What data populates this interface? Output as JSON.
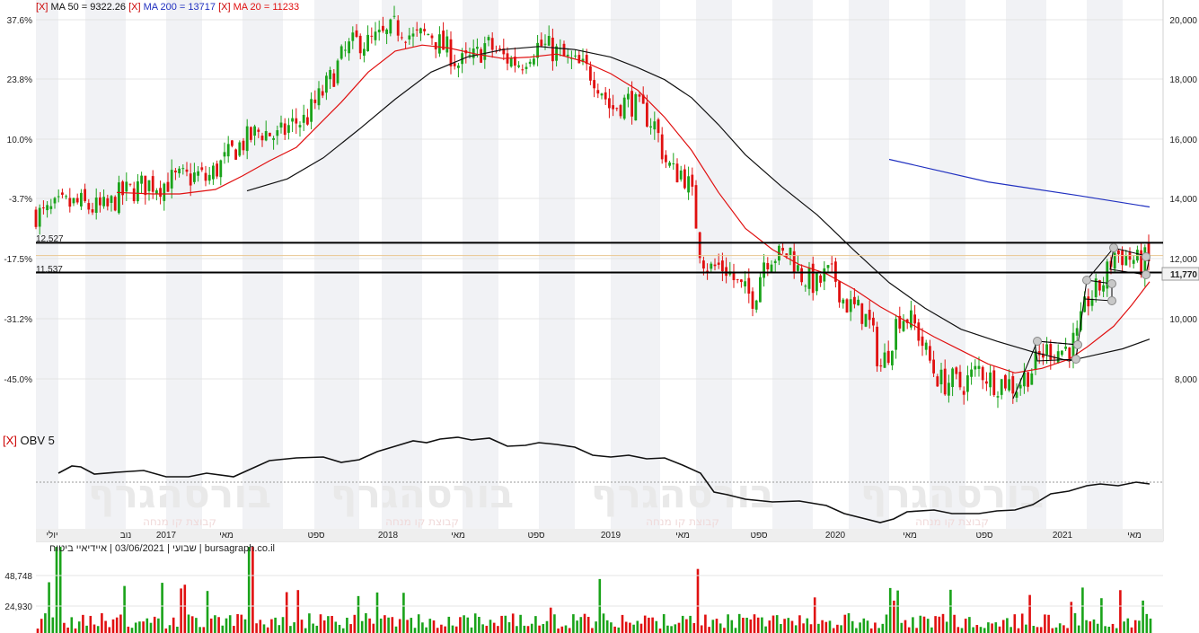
{
  "legend": {
    "close_mark": "[X]",
    "ma50": "MA 50 = 9322.26",
    "ma200": "MA 200 = 13717",
    "ma20": "MA 20 = 11233",
    "obv": "OBV 5"
  },
  "footer_info": "שבועי | 03/06/2021 | איידיאיי ביטוח | bursagraph.co.il",
  "watermark": {
    "brand": "בורסהגרף",
    "tagline": "קבוצת קו מנחה"
  },
  "colors": {
    "up": "#1aa31a",
    "down": "#e01010",
    "ma20": "#e01010",
    "ma50": "#111111",
    "ma200": "#2030c0",
    "obv": "#111111"
  },
  "price_axis": {
    "pct_labels": [
      "37.6%",
      "23.8%",
      "10.0%",
      "-3.7%",
      "-17.5%",
      "-31.2%",
      "-45.0%"
    ],
    "price_labels": [
      "20,000",
      "18,000",
      "16,000",
      "14,000",
      "12,000",
      "10,000",
      "8,000"
    ],
    "current_price": "11,770"
  },
  "levels": {
    "upper": "12,527",
    "lower": "11,537"
  },
  "volume_axis": {
    "labels": [
      "48,748",
      "24,930"
    ]
  },
  "time_axis": [
    "יולי",
    "נוב",
    "2017",
    "מאי",
    "ספט",
    "2018",
    "מאי",
    "ספט",
    "2019",
    "מאי",
    "ספט",
    "2020",
    "מאי",
    "ספט",
    "2021",
    "מאי"
  ],
  "chart_data": {
    "type": "candlestick",
    "title": "",
    "frequency": "weekly",
    "date": "03/06/2021",
    "y_range": [
      6200,
      20500
    ],
    "levels": [
      12527,
      11537
    ],
    "current_price": 11770,
    "price_path": [
      [
        0,
        13900
      ],
      [
        10,
        13600
      ],
      [
        20,
        13550
      ],
      [
        30,
        13650
      ],
      [
        40,
        13500
      ],
      [
        50,
        13450
      ],
      [
        60,
        13620
      ],
      [
        70,
        13760
      ],
      [
        80,
        13800
      ],
      [
        90,
        13820
      ],
      [
        100,
        13700
      ],
      [
        110,
        13650
      ],
      [
        120,
        13660
      ],
      [
        130,
        14050
      ],
      [
        140,
        14200
      ],
      [
        150,
        14300
      ],
      [
        160,
        14450
      ],
      [
        170,
        14500
      ],
      [
        180,
        14450
      ],
      [
        190,
        14600
      ],
      [
        200,
        14650
      ],
      [
        210,
        14680
      ],
      [
        220,
        14780
      ],
      [
        230,
        14620
      ],
      [
        240,
        14950
      ],
      [
        250,
        15250
      ],
      [
        260,
        15600
      ],
      [
        270,
        15850
      ],
      [
        280,
        16050
      ],
      [
        290,
        16250
      ],
      [
        300,
        16150
      ],
      [
        310,
        16000
      ],
      [
        320,
        16350
      ],
      [
        330,
        16550
      ],
      [
        340,
        16600
      ],
      [
        350,
        17100
      ],
      [
        360,
        17550
      ],
      [
        370,
        18050
      ],
      [
        380,
        18650
      ],
      [
        390,
        19050
      ],
      [
        400,
        19250
      ],
      [
        410,
        19150
      ],
      [
        420,
        19300
      ],
      [
        430,
        19400
      ],
      [
        440,
        19700
      ],
      [
        450,
        19650
      ],
      [
        460,
        19300
      ],
      [
        470,
        19400
      ],
      [
        480,
        19500
      ],
      [
        490,
        19100
      ],
      [
        500,
        18900
      ],
      [
        510,
        18450
      ],
      [
        520,
        18550
      ],
      [
        530,
        18700
      ],
      [
        540,
        19100
      ],
      [
        550,
        18950
      ],
      [
        560,
        18700
      ],
      [
        570,
        18600
      ],
      [
        580,
        18500
      ],
      [
        590,
        18900
      ],
      [
        600,
        19100
      ],
      [
        610,
        19000
      ],
      [
        620,
        18850
      ],
      [
        630,
        18600
      ],
      [
        640,
        18450
      ],
      [
        650,
        18300
      ],
      [
        660,
        18150
      ],
      [
        670,
        17650
      ],
      [
        680,
        16950
      ],
      [
        690,
        17150
      ],
      [
        700,
        17250
      ],
      [
        710,
        17000
      ],
      [
        720,
        16750
      ],
      [
        730,
        16400
      ],
      [
        740,
        15300
      ],
      [
        750,
        14850
      ],
      [
        760,
        14900
      ],
      [
        770,
        14200
      ],
      [
        780,
        12200
      ],
      [
        790,
        11650
      ],
      [
        800,
        11750
      ],
      [
        810,
        11650
      ],
      [
        820,
        11150
      ],
      [
        830,
        10850
      ],
      [
        840,
        10700
      ],
      [
        850,
        11950
      ],
      [
        860,
        12150
      ],
      [
        870,
        12050
      ],
      [
        880,
        12250
      ],
      [
        890,
        11500
      ],
      [
        900,
        11300
      ],
      [
        910,
        11100
      ],
      [
        920,
        11500
      ],
      [
        930,
        11350
      ],
      [
        940,
        10550
      ],
      [
        950,
        10350
      ],
      [
        960,
        10200
      ],
      [
        970,
        9700
      ],
      [
        980,
        8350
      ],
      [
        990,
        9000
      ],
      [
        1000,
        10100
      ],
      [
        1010,
        10050
      ],
      [
        1020,
        9700
      ],
      [
        1030,
        8950
      ],
      [
        1040,
        8250
      ],
      [
        1050,
        7850
      ],
      [
        1060,
        7950
      ],
      [
        1070,
        7750
      ],
      [
        1080,
        8050
      ],
      [
        1090,
        8350
      ],
      [
        1100,
        8050
      ],
      [
        1110,
        7850
      ],
      [
        1120,
        7950
      ],
      [
        1130,
        7700
      ],
      [
        1140,
        8050
      ],
      [
        1150,
        8350
      ],
      [
        1160,
        8850
      ],
      [
        1170,
        9000
      ],
      [
        1180,
        8950
      ],
      [
        1190,
        9050
      ],
      [
        1200,
        9400
      ],
      [
        1210,
        10600
      ],
      [
        1220,
        10900
      ],
      [
        1230,
        11300
      ],
      [
        1240,
        12200
      ],
      [
        1250,
        12100
      ],
      [
        1260,
        12000
      ],
      [
        1270,
        11800
      ],
      [
        1275,
        11950
      ],
      [
        1280,
        11770
      ]
    ],
    "ma20": [
      [
        130,
        14200
      ],
      [
        170,
        14150
      ],
      [
        200,
        14150
      ],
      [
        240,
        14300
      ],
      [
        270,
        14750
      ],
      [
        300,
        15250
      ],
      [
        330,
        15700
      ],
      [
        350,
        16300
      ],
      [
        380,
        17200
      ],
      [
        410,
        18200
      ],
      [
        440,
        18900
      ],
      [
        470,
        19100
      ],
      [
        500,
        19000
      ],
      [
        530,
        18800
      ],
      [
        560,
        18650
      ],
      [
        590,
        18700
      ],
      [
        620,
        18800
      ],
      [
        650,
        18550
      ],
      [
        680,
        18150
      ],
      [
        710,
        17600
      ],
      [
        740,
        16700
      ],
      [
        770,
        15600
      ],
      [
        800,
        14200
      ],
      [
        830,
        13000
      ],
      [
        860,
        12300
      ],
      [
        890,
        11800
      ],
      [
        920,
        11500
      ],
      [
        950,
        11000
      ],
      [
        980,
        10400
      ],
      [
        1010,
        9900
      ],
      [
        1040,
        9400
      ],
      [
        1070,
        8950
      ],
      [
        1100,
        8500
      ],
      [
        1130,
        8200
      ],
      [
        1160,
        8350
      ],
      [
        1190,
        8650
      ],
      [
        1210,
        9050
      ],
      [
        1240,
        9750
      ],
      [
        1260,
        10450
      ],
      [
        1280,
        11233
      ]
    ],
    "ma50": [
      [
        275,
        14250
      ],
      [
        320,
        14650
      ],
      [
        360,
        15350
      ],
      [
        400,
        16300
      ],
      [
        440,
        17300
      ],
      [
        480,
        18200
      ],
      [
        520,
        18700
      ],
      [
        560,
        18950
      ],
      [
        600,
        19050
      ],
      [
        640,
        18950
      ],
      [
        680,
        18700
      ],
      [
        710,
        18350
      ],
      [
        740,
        17950
      ],
      [
        770,
        17350
      ],
      [
        800,
        16450
      ],
      [
        830,
        15450
      ],
      [
        870,
        14400
      ],
      [
        910,
        13450
      ],
      [
        950,
        12300
      ],
      [
        990,
        11200
      ],
      [
        1030,
        10350
      ],
      [
        1070,
        9650
      ],
      [
        1110,
        9250
      ],
      [
        1150,
        8900
      ],
      [
        1190,
        8600
      ],
      [
        1220,
        8800
      ],
      [
        1250,
        9000
      ],
      [
        1280,
        9322
      ]
    ],
    "ma200": [
      [
        990,
        15300
      ],
      [
        1100,
        14550
      ],
      [
        1200,
        14100
      ],
      [
        1280,
        13717
      ]
    ],
    "obv_path": [
      [
        65,
        527
      ],
      [
        80,
        519
      ],
      [
        90,
        520
      ],
      [
        105,
        528
      ],
      [
        130,
        526
      ],
      [
        160,
        524
      ],
      [
        185,
        531
      ],
      [
        210,
        531
      ],
      [
        230,
        527
      ],
      [
        260,
        531
      ],
      [
        280,
        522
      ],
      [
        300,
        513
      ],
      [
        330,
        510
      ],
      [
        360,
        509
      ],
      [
        380,
        515
      ],
      [
        400,
        512
      ],
      [
        420,
        503
      ],
      [
        440,
        497
      ],
      [
        460,
        491
      ],
      [
        475,
        493
      ],
      [
        490,
        489
      ],
      [
        510,
        487
      ],
      [
        525,
        490
      ],
      [
        545,
        488
      ],
      [
        565,
        497
      ],
      [
        585,
        496
      ],
      [
        600,
        493
      ],
      [
        620,
        495
      ],
      [
        640,
        498
      ],
      [
        660,
        507
      ],
      [
        680,
        509
      ],
      [
        700,
        507
      ],
      [
        720,
        511
      ],
      [
        740,
        510
      ],
      [
        760,
        518
      ],
      [
        780,
        527
      ],
      [
        795,
        548
      ],
      [
        810,
        551
      ],
      [
        830,
        556
      ],
      [
        860,
        559
      ],
      [
        890,
        558
      ],
      [
        920,
        563
      ],
      [
        940,
        572
      ],
      [
        960,
        577
      ],
      [
        980,
        582
      ],
      [
        995,
        578
      ],
      [
        1010,
        570
      ],
      [
        1040,
        568
      ],
      [
        1060,
        572
      ],
      [
        1090,
        572
      ],
      [
        1110,
        569
      ],
      [
        1130,
        568
      ],
      [
        1150,
        562
      ],
      [
        1170,
        550
      ],
      [
        1190,
        547
      ],
      [
        1210,
        541
      ],
      [
        1225,
        539
      ],
      [
        1245,
        541
      ],
      [
        1265,
        537
      ],
      [
        1280,
        539
      ]
    ],
    "obv_baseline": 537
  }
}
